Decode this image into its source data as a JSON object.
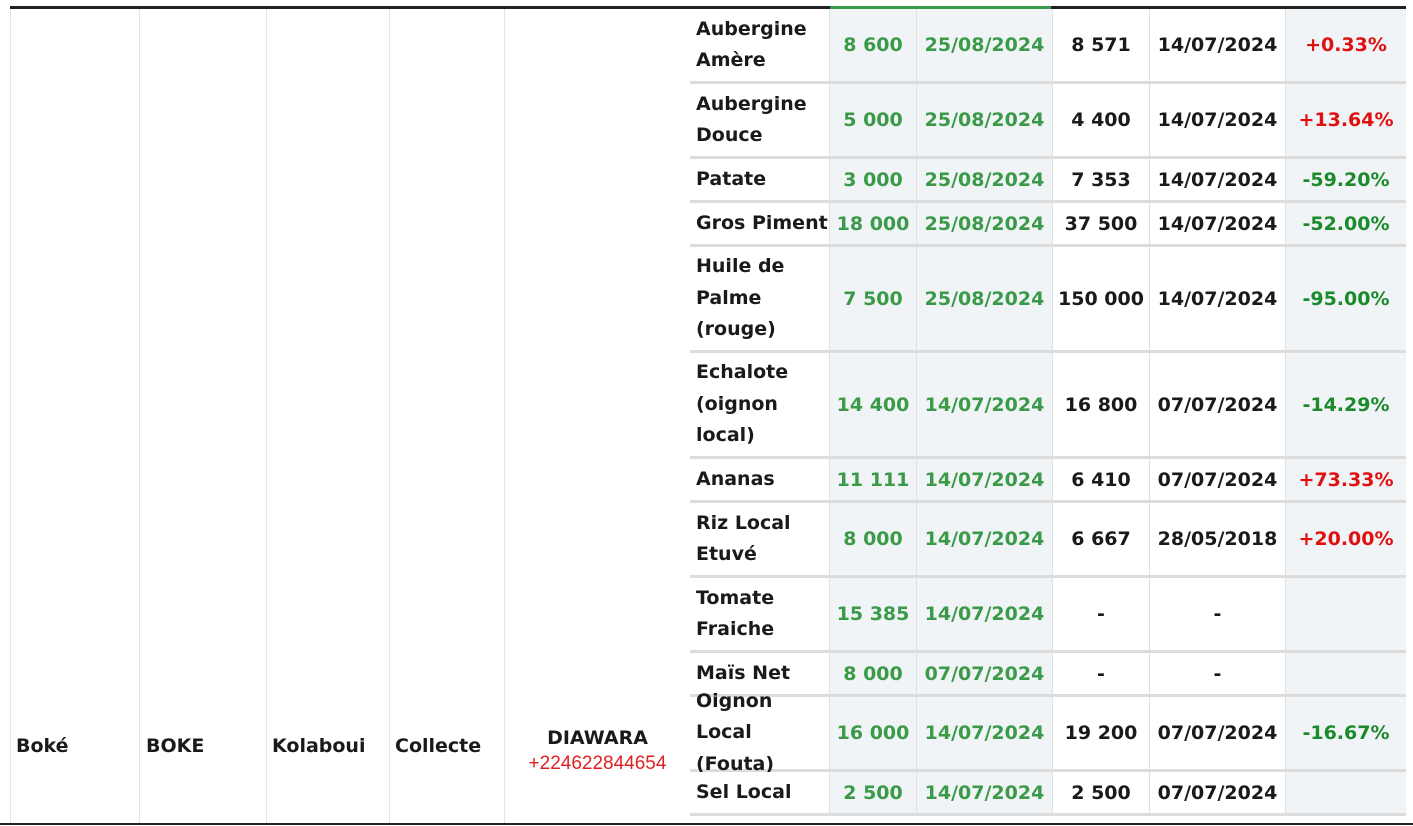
{
  "location": {
    "region": "Boké",
    "prefecture": "BOKE",
    "market": "Kolaboui",
    "type": "Collecte",
    "agent_name": "DIAWARA",
    "agent_phone": "+224622844654"
  },
  "colors": {
    "current": "#3a9a48",
    "increase": "#e01010",
    "decrease": "#1a8a2a"
  },
  "rows": [
    {
      "product": "Aubergine Amère",
      "price": "8 600",
      "date": "25/08/2024",
      "prev_price": "8 571",
      "prev_date": "14/07/2024",
      "variation": "+0.33%"
    },
    {
      "product": "Aubergine Douce",
      "price": "5 000",
      "date": "25/08/2024",
      "prev_price": "4 400",
      "prev_date": "14/07/2024",
      "variation": "+13.64%"
    },
    {
      "product": "Patate",
      "price": "3 000",
      "date": "25/08/2024",
      "prev_price": "7 353",
      "prev_date": "14/07/2024",
      "variation": "-59.20%"
    },
    {
      "product": "Gros Piment",
      "price": "18 000",
      "date": "25/08/2024",
      "prev_price": "37 500",
      "prev_date": "14/07/2024",
      "variation": "-52.00%"
    },
    {
      "product": "Huile de Palme (rouge)",
      "price": "7 500",
      "date": "25/08/2024",
      "prev_price": "150 000",
      "prev_date": "14/07/2024",
      "variation": "-95.00%"
    },
    {
      "product": "Echalote (oignon local)",
      "price": "14 400",
      "date": "14/07/2024",
      "prev_price": "16 800",
      "prev_date": "07/07/2024",
      "variation": "-14.29%"
    },
    {
      "product": "Ananas",
      "price": "11 111",
      "date": "14/07/2024",
      "prev_price": "6 410",
      "prev_date": "07/07/2024",
      "variation": "+73.33%"
    },
    {
      "product": "Riz Local Etuvé",
      "price": "8 000",
      "date": "14/07/2024",
      "prev_price": "6 667",
      "prev_date": "28/05/2018",
      "variation": "+20.00%"
    },
    {
      "product": "Tomate Fraiche",
      "price": "15 385",
      "date": "14/07/2024",
      "prev_price": "-",
      "prev_date": "-",
      "variation": ""
    },
    {
      "product": "Maïs Net",
      "price": "8 000",
      "date": "07/07/2024",
      "prev_price": "-",
      "prev_date": "-",
      "variation": ""
    },
    {
      "product": "Oignon Local (Fouta)",
      "price": "16 000",
      "date": "14/07/2024",
      "prev_price": "19 200",
      "prev_date": "07/07/2024",
      "variation": "-16.67%"
    },
    {
      "product": "Sel Local",
      "price": "2 500",
      "date": "14/07/2024",
      "prev_price": "2 500",
      "prev_date": "07/07/2024",
      "variation": ""
    }
  ]
}
